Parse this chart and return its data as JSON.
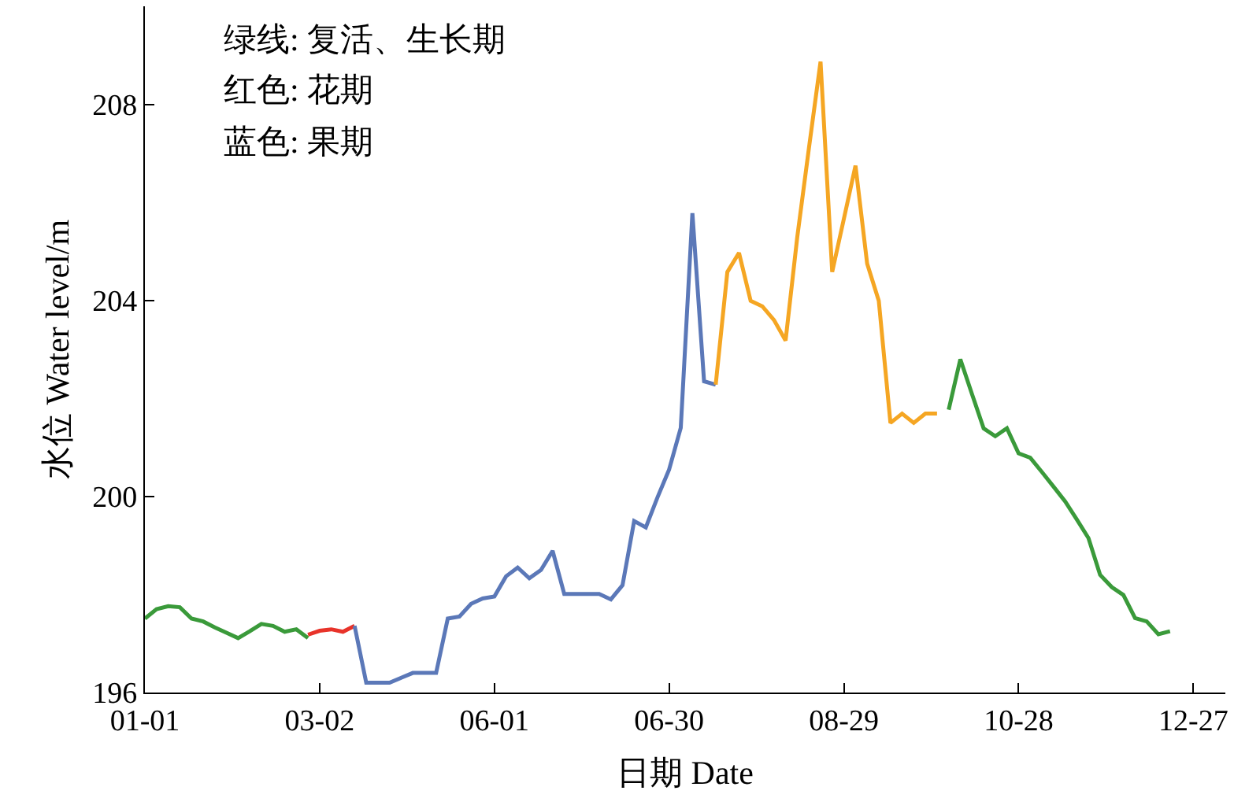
{
  "chart_data": {
    "type": "line",
    "xlabel": "日期 Date",
    "ylabel": "水位 Water level/m",
    "annotations": [
      "绿线: 复活、生长期",
      "红色: 花期",
      "蓝色: 果期"
    ],
    "categories": [
      "01-01",
      null,
      null,
      null,
      null,
      null,
      null,
      null,
      null,
      null,
      null,
      null,
      null,
      null,
      null,
      "03-02",
      null,
      null,
      null,
      null,
      null,
      null,
      null,
      null,
      null,
      null,
      null,
      null,
      null,
      null,
      "06-01",
      null,
      null,
      null,
      null,
      null,
      null,
      null,
      null,
      null,
      null,
      null,
      null,
      null,
      null,
      "06-30",
      null,
      null,
      null,
      null,
      null,
      null,
      null,
      null,
      null,
      null,
      null,
      null,
      null,
      null,
      "08-29",
      null,
      null,
      null,
      null,
      null,
      null,
      null,
      null,
      null,
      null,
      null,
      null,
      null,
      null,
      "10-28",
      null,
      null,
      null,
      null,
      null,
      null,
      null,
      null,
      null,
      null,
      null,
      null,
      null,
      null,
      "12-27",
      null,
      null
    ],
    "ylim": [
      196,
      210
    ],
    "yticks": [
      196,
      200,
      204,
      208
    ],
    "grid": false,
    "marker": "none",
    "line_style": "solid",
    "series": [
      {
        "color": "#3a9a3a",
        "values": [
          197.51,
          197.7,
          197.76,
          197.74,
          197.51,
          197.45,
          197.33,
          197.22,
          197.11,
          197.25,
          197.4,
          197.36,
          197.24,
          197.29,
          197.11,
          null,
          null,
          null,
          null,
          null,
          null,
          null,
          null,
          null,
          null,
          null,
          null,
          null,
          null,
          null,
          null,
          null,
          null,
          null,
          null,
          null,
          null,
          null,
          null,
          null,
          null,
          null,
          null,
          null,
          null,
          null,
          null,
          null,
          null,
          null,
          null,
          null,
          null,
          null,
          null,
          null,
          null,
          null,
          null,
          null,
          null,
          null,
          null,
          null,
          null,
          null,
          null,
          null,
          null,
          null,
          null,
          null,
          null,
          null,
          null,
          null,
          null,
          null,
          null,
          null,
          null,
          null,
          null,
          null,
          null,
          null,
          null,
          null,
          null,
          null,
          null,
          null,
          null
        ]
      },
      {
        "color": "#e8332a",
        "values": [
          null,
          null,
          null,
          null,
          null,
          null,
          null,
          null,
          null,
          null,
          null,
          null,
          null,
          null,
          197.18,
          197.26,
          197.29,
          197.24,
          197.36,
          null,
          null,
          null,
          null,
          null,
          null,
          null,
          null,
          null,
          null,
          null,
          null,
          null,
          null,
          null,
          null,
          null,
          null,
          null,
          null,
          null,
          null,
          null,
          null,
          null,
          null,
          null,
          null,
          null,
          null,
          null,
          null,
          null,
          null,
          null,
          null,
          null,
          null,
          null,
          null,
          null,
          null,
          null,
          null,
          null,
          null,
          null,
          null,
          null,
          null,
          null,
          null,
          null,
          null,
          null,
          null,
          null,
          null,
          null,
          null,
          null,
          null,
          null,
          null,
          null,
          null,
          null,
          null,
          null,
          null,
          null,
          null,
          null,
          null
        ]
      },
      {
        "color": "#5b78b8",
        "values": [
          null,
          null,
          null,
          null,
          null,
          null,
          null,
          null,
          null,
          null,
          null,
          null,
          null,
          null,
          null,
          null,
          null,
          null,
          197.36,
          196.2,
          196.2,
          196.2,
          196.3,
          196.4,
          196.4,
          196.4,
          197.51,
          197.55,
          197.81,
          197.92,
          197.96,
          198.37,
          198.55,
          198.33,
          198.5,
          198.89,
          198.01,
          198.01,
          198.01,
          198.01,
          197.9,
          198.19,
          199.5,
          199.37,
          199.98,
          200.55,
          201.4,
          205.78,
          202.35,
          202.28,
          null,
          null,
          null,
          null,
          null,
          null,
          null,
          null,
          null,
          null,
          null,
          null,
          null,
          null,
          null,
          null,
          null,
          null,
          null,
          null,
          null,
          null,
          null,
          null,
          null,
          null,
          null,
          null,
          null,
          null,
          null,
          null,
          null,
          null,
          null,
          null,
          null,
          null,
          null,
          null,
          null,
          null,
          null
        ]
      },
      {
        "color": "#f5a623",
        "values": [
          null,
          null,
          null,
          null,
          null,
          null,
          null,
          null,
          null,
          null,
          null,
          null,
          null,
          null,
          null,
          null,
          null,
          null,
          null,
          null,
          null,
          null,
          null,
          null,
          null,
          null,
          null,
          null,
          null,
          null,
          null,
          null,
          null,
          null,
          null,
          null,
          null,
          null,
          null,
          null,
          null,
          null,
          null,
          null,
          null,
          null,
          null,
          null,
          null,
          202.28,
          204.58,
          204.97,
          203.99,
          203.88,
          203.6,
          203.18,
          205.29,
          207.1,
          208.87,
          204.58,
          205.66,
          206.75,
          204.75,
          203.99,
          201.5,
          201.69,
          201.5,
          201.69,
          201.69,
          null,
          null,
          null,
          null,
          null,
          null,
          null,
          null,
          null,
          null,
          null,
          null,
          null,
          null,
          null,
          null,
          null,
          null,
          null,
          null,
          null,
          null,
          null,
          null
        ]
      },
      {
        "color": "#3a9a3a",
        "values": [
          null,
          null,
          null,
          null,
          null,
          null,
          null,
          null,
          null,
          null,
          null,
          null,
          null,
          null,
          null,
          null,
          null,
          null,
          null,
          null,
          null,
          null,
          null,
          null,
          null,
          null,
          null,
          null,
          null,
          null,
          null,
          null,
          null,
          null,
          null,
          null,
          null,
          null,
          null,
          null,
          null,
          null,
          null,
          null,
          null,
          null,
          null,
          null,
          null,
          null,
          null,
          null,
          null,
          null,
          null,
          null,
          null,
          null,
          null,
          null,
          null,
          null,
          null,
          null,
          null,
          null,
          null,
          null,
          null,
          201.77,
          202.8,
          202.09,
          201.39,
          201.23,
          201.39,
          200.88,
          200.79,
          200.5,
          200.2,
          199.9,
          199.53,
          199.15,
          198.4,
          198.15,
          197.99,
          197.52,
          197.45,
          197.19,
          197.25,
          null,
          null,
          null,
          null
        ]
      }
    ]
  }
}
